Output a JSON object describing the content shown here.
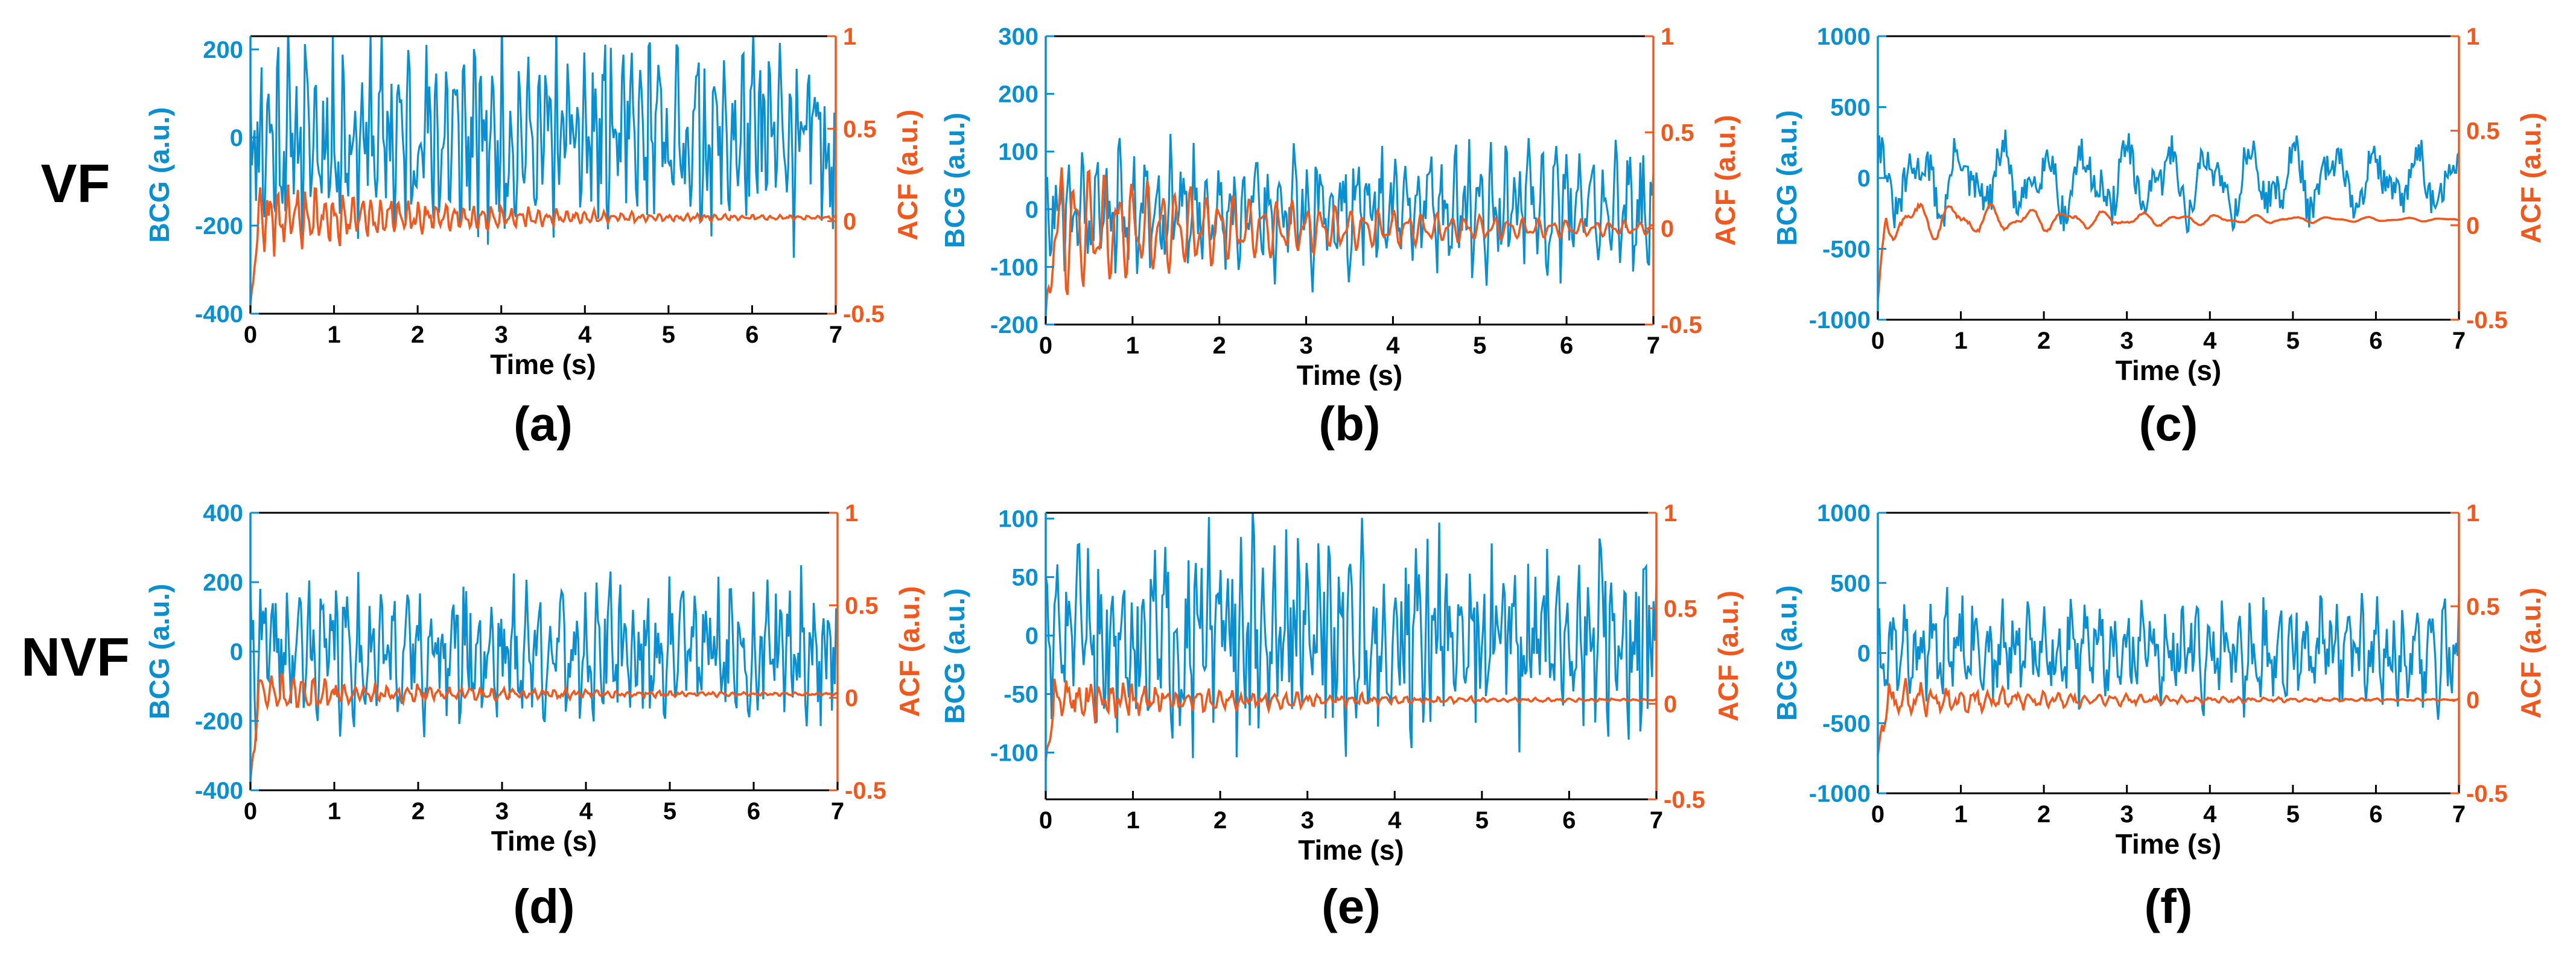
{
  "figure": {
    "row_labels": [
      "VF",
      "NVF"
    ],
    "colors": {
      "bcg": "#0a8fd0",
      "acf": "#f0581e",
      "axis": "#000000"
    }
  },
  "chart_data": [
    {
      "id": "a",
      "row": 0,
      "col": 0,
      "type": "line",
      "caption": "(a)",
      "row_label": "VF",
      "xlabel": "Time (s)",
      "ylabel_left": "BCG (a.u.)",
      "ylabel_right": "ACF (a.u.)",
      "xlim": [
        0,
        7
      ],
      "xticks": [
        0,
        1,
        2,
        3,
        4,
        5,
        6,
        7
      ],
      "ylim_left": [
        -400,
        230
      ],
      "yticks_left": [
        -400,
        -200,
        0,
        200
      ],
      "ylim_right": [
        -0.5,
        1
      ],
      "yticks_right": [
        -0.5,
        0,
        0.5,
        1
      ],
      "series": [
        {
          "name": "BCG",
          "axis": "left",
          "color": "#0a8fd0",
          "n": 420,
          "seed": 11,
          "amp": 150,
          "center": 0,
          "decay": 0,
          "freq": 9,
          "noise": 0.9
        },
        {
          "name": "ACF",
          "axis": "right",
          "color": "#f0581e",
          "n": 420,
          "seed": 12,
          "amp": 0.22,
          "center": 0.02,
          "decay": 0.45,
          "freq": 9,
          "noise": 0.3,
          "start": -0.45
        }
      ]
    },
    {
      "id": "b",
      "row": 0,
      "col": 1,
      "type": "line",
      "caption": "(b)",
      "row_label": "",
      "xlabel": "Time (s)",
      "ylabel_left": "BCG (a.u.)",
      "ylabel_right": "ACF (a.u.)",
      "xlim": [
        0,
        7
      ],
      "xticks": [
        0,
        1,
        2,
        3,
        4,
        5,
        6,
        7
      ],
      "ylim_left": [
        -200,
        300
      ],
      "yticks_left": [
        -200,
        -100,
        0,
        100,
        200,
        300
      ],
      "ylim_right": [
        -0.5,
        1
      ],
      "yticks_right": [
        -0.5,
        0,
        0.5,
        1
      ],
      "series": [
        {
          "name": "BCG",
          "axis": "left",
          "color": "#0a8fd0",
          "n": 420,
          "seed": 21,
          "amp": 85,
          "center": 0,
          "decay": 0,
          "freq": 7,
          "noise": 0.7
        },
        {
          "name": "ACF",
          "axis": "right",
          "color": "#f0581e",
          "n": 420,
          "seed": 22,
          "amp": 0.4,
          "center": 0.0,
          "decay": 0.35,
          "freq": 6,
          "noise": 0.05,
          "start": -0.45
        }
      ]
    },
    {
      "id": "c",
      "row": 0,
      "col": 2,
      "type": "line",
      "caption": "(c)",
      "row_label": "",
      "xlabel": "Time (s)",
      "ylabel_left": "BCG (a.u.)",
      "ylabel_right": "ACF (a.u.)",
      "xlim": [
        0,
        7
      ],
      "xticks": [
        0,
        1,
        2,
        3,
        4,
        5,
        6,
        7
      ],
      "ylim_left": [
        -1000,
        1000
      ],
      "yticks_left": [
        -1000,
        -500,
        0,
        500,
        1000
      ],
      "ylim_right": [
        -0.5,
        1
      ],
      "yticks_right": [
        -0.5,
        0,
        0.5,
        1
      ],
      "series": [
        {
          "name": "BCG",
          "axis": "left",
          "color": "#0a8fd0",
          "n": 420,
          "seed": 31,
          "amp": 260,
          "center": -20,
          "decay": 0,
          "freq": 2,
          "noise": 0.5
        },
        {
          "name": "ACF",
          "axis": "right",
          "color": "#f0581e",
          "n": 420,
          "seed": 32,
          "amp": 0.14,
          "center": 0.03,
          "decay": 0.4,
          "freq": 2.2,
          "noise": 0.1,
          "start": -0.4
        }
      ]
    },
    {
      "id": "d",
      "row": 1,
      "col": 0,
      "type": "line",
      "caption": "(d)",
      "row_label": "NVF",
      "xlabel": "Time (s)",
      "ylabel_left": "BCG (a.u.)",
      "ylabel_right": "ACF (a.u.)",
      "xlim": [
        0,
        7
      ],
      "xticks": [
        0,
        1,
        2,
        3,
        4,
        5,
        6,
        7
      ],
      "ylim_left": [
        -400,
        400
      ],
      "yticks_left": [
        -400,
        -200,
        0,
        200,
        400
      ],
      "ylim_right": [
        -0.5,
        1
      ],
      "yticks_right": [
        -0.5,
        0,
        0.5,
        1
      ],
      "series": [
        {
          "name": "BCG",
          "axis": "left",
          "color": "#0a8fd0",
          "n": 420,
          "seed": 41,
          "amp": 140,
          "center": 0,
          "decay": 0,
          "freq": 7,
          "noise": 0.9
        },
        {
          "name": "ACF",
          "axis": "right",
          "color": "#f0581e",
          "n": 420,
          "seed": 42,
          "amp": 0.1,
          "center": 0.02,
          "decay": 0.4,
          "freq": 8,
          "noise": 0.5,
          "start": -0.45
        }
      ]
    },
    {
      "id": "e",
      "row": 1,
      "col": 1,
      "type": "line",
      "caption": "(e)",
      "row_label": "",
      "xlabel": "Time (s)",
      "ylabel_left": "BCG (a.u.)",
      "ylabel_right": "ACF (a.u.)",
      "xlim": [
        0,
        7
      ],
      "xticks": [
        0,
        1,
        2,
        3,
        4,
        5,
        6,
        7
      ],
      "ylim_left": [
        -140,
        105
      ],
      "yticks_left": [
        -100,
        -50,
        0,
        50,
        100
      ],
      "ylim_right": [
        -0.5,
        1
      ],
      "yticks_right": [
        -0.5,
        0,
        0.5,
        1
      ],
      "series": [
        {
          "name": "BCG",
          "axis": "left",
          "color": "#0a8fd0",
          "n": 420,
          "seed": 51,
          "amp": 55,
          "center": 0,
          "decay": 0,
          "freq": 8,
          "noise": 1.0
        },
        {
          "name": "ACF",
          "axis": "right",
          "color": "#f0581e",
          "n": 420,
          "seed": 52,
          "amp": 0.12,
          "center": 0.02,
          "decay": 0.45,
          "freq": 8,
          "noise": 0.5,
          "start": -0.3
        }
      ]
    },
    {
      "id": "f",
      "row": 1,
      "col": 2,
      "type": "line",
      "caption": "(f)",
      "row_label": "",
      "xlabel": "Time (s)",
      "ylabel_left": "BCG (a.u.)",
      "ylabel_right": "ACF (a.u.)",
      "xlim": [
        0,
        7
      ],
      "xticks": [
        0,
        1,
        2,
        3,
        4,
        5,
        6,
        7
      ],
      "ylim_left": [
        -1000,
        1000
      ],
      "yticks_left": [
        -1000,
        -500,
        0,
        500,
        1000
      ],
      "ylim_right": [
        -0.5,
        1
      ],
      "yticks_right": [
        -0.5,
        0,
        0.5,
        1
      ],
      "series": [
        {
          "name": "BCG",
          "axis": "left",
          "color": "#0a8fd0",
          "n": 420,
          "seed": 61,
          "amp": 260,
          "center": 0,
          "decay": 0,
          "freq": 6,
          "noise": 0.9
        },
        {
          "name": "ACF",
          "axis": "right",
          "color": "#f0581e",
          "n": 420,
          "seed": 62,
          "amp": 0.1,
          "center": 0.0,
          "decay": 0.45,
          "freq": 6,
          "noise": 0.4,
          "start": -0.3
        }
      ]
    }
  ]
}
